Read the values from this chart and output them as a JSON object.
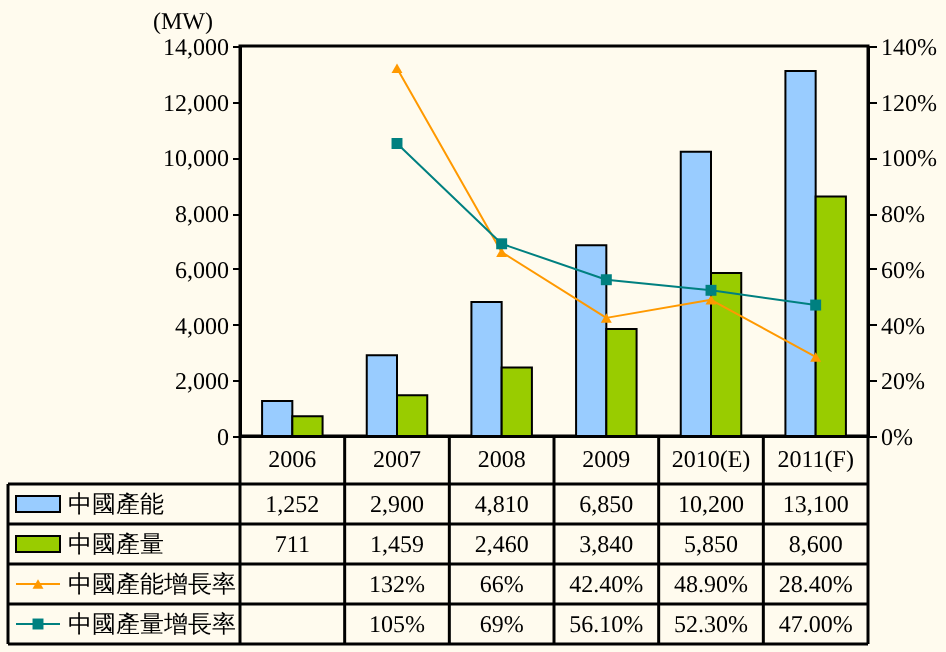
{
  "chart_data": {
    "type": "bar",
    "ylabel": "(MW)",
    "categories": [
      "2006",
      "2007",
      "2008",
      "2009",
      "2010(E)",
      "2011(F)"
    ],
    "ylim": [
      0,
      14000
    ],
    "yticks": [
      {
        "value": 0,
        "label": "0"
      },
      {
        "value": 2000,
        "label": "2,000"
      },
      {
        "value": 4000,
        "label": "4,000"
      },
      {
        "value": 6000,
        "label": "6,000"
      },
      {
        "value": 8000,
        "label": "8,000"
      },
      {
        "value": 10000,
        "label": "10,000"
      },
      {
        "value": 12000,
        "label": "12,000"
      },
      {
        "value": 14000,
        "label": "14,000"
      }
    ],
    "y2lim": [
      0,
      140
    ],
    "y2ticks": [
      {
        "value": 0,
        "label": "0%"
      },
      {
        "value": 20,
        "label": "20%"
      },
      {
        "value": 40,
        "label": "40%"
      },
      {
        "value": 60,
        "label": "60%"
      },
      {
        "value": 80,
        "label": "80%"
      },
      {
        "value": 100,
        "label": "100%"
      },
      {
        "value": 120,
        "label": "120%"
      },
      {
        "value": 140,
        "label": "140%"
      }
    ],
    "legend": "bottom left",
    "series": [
      {
        "name": "中國產能",
        "color": "#99ccff",
        "values": [
          1252,
          2900,
          4810,
          6850,
          10200,
          13100
        ],
        "value_labels": [
          "1,252",
          "2,900",
          "4,810",
          "6,850",
          "10,200",
          "13,100"
        ]
      },
      {
        "name": "中國產量",
        "color": "#99cc00",
        "values": [
          711,
          1459,
          2460,
          3840,
          5850,
          8600
        ],
        "value_labels": [
          "711",
          "1,459",
          "2,460",
          "3,840",
          "5,850",
          "8,600"
        ]
      },
      {
        "name": "中國產能增長率",
        "type": "line",
        "axis": "y2",
        "marker": "triangle",
        "color": "#ff9900",
        "values": [
          null,
          132,
          66,
          42.4,
          48.9,
          28.4
        ],
        "value_labels": [
          null,
          "132%",
          "66%",
          "42.40%",
          "48.90%",
          "28.40%"
        ]
      },
      {
        "name": "中國產量增長率",
        "type": "line",
        "axis": "y2",
        "marker": "square",
        "color": "#008080",
        "values": [
          null,
          105,
          69,
          56.1,
          52.3,
          47
        ],
        "value_labels": [
          null,
          "105%",
          "69%",
          "56.10%",
          "52.30%",
          "47.00%"
        ]
      }
    ]
  }
}
